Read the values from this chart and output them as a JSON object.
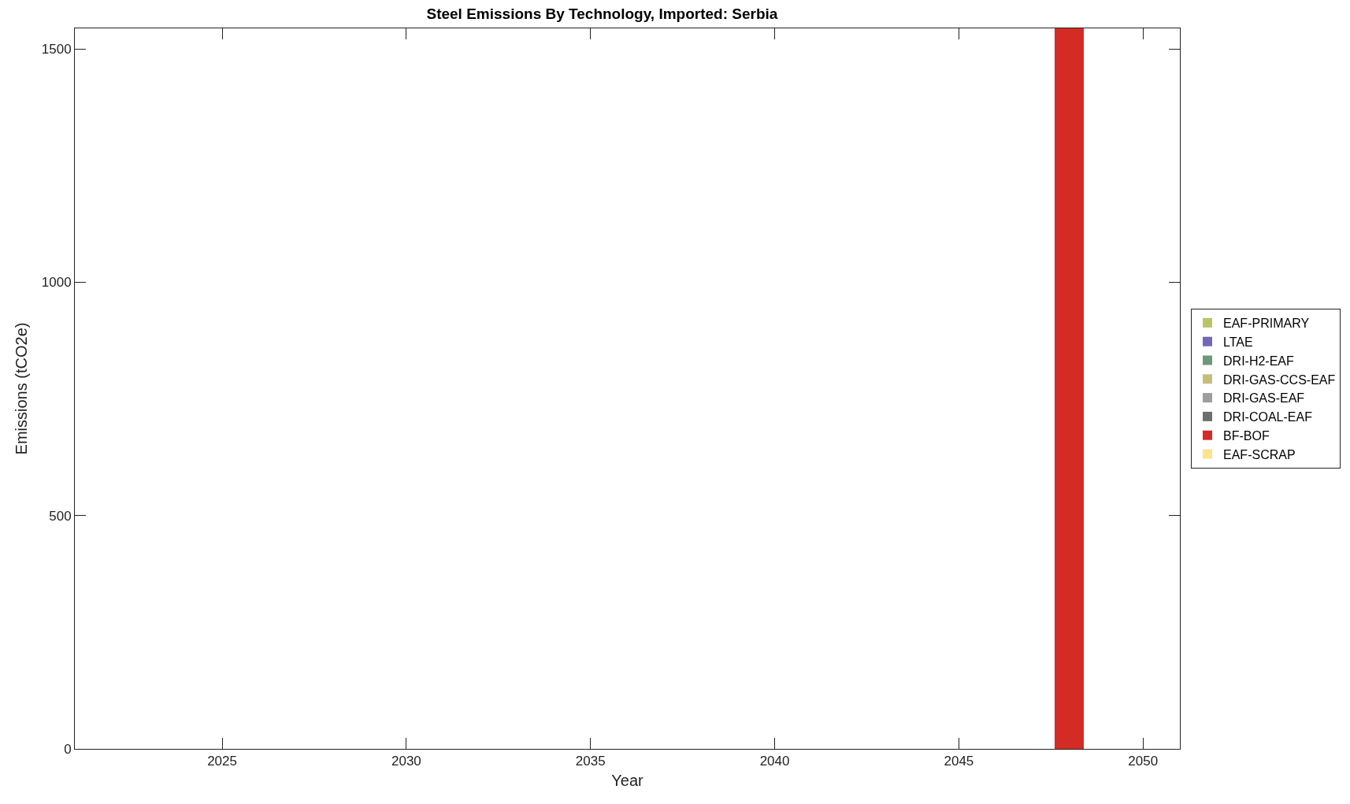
{
  "chart_data": {
    "type": "bar",
    "stacked": true,
    "title": "Steel Emissions By Technology, Imported: Serbia",
    "xlabel": "Year",
    "ylabel": "Emissions (tCO2e)",
    "x": [
      2022,
      2023,
      2024,
      2025,
      2026,
      2027,
      2028,
      2029,
      2030,
      2031,
      2032,
      2033,
      2034,
      2035,
      2036,
      2037,
      2038,
      2039,
      2040,
      2041,
      2042,
      2043,
      2044,
      2045,
      2046,
      2047,
      2048,
      2049,
      2050
    ],
    "series": [
      {
        "name": "EAF-PRIMARY",
        "color": "#bcc366",
        "values": [
          0,
          0,
          0,
          0,
          0,
          0,
          0,
          0,
          0,
          0,
          0,
          0,
          0,
          0,
          0,
          0,
          0,
          0,
          0,
          0,
          0,
          0,
          0,
          0,
          0,
          0,
          0,
          0,
          0
        ]
      },
      {
        "name": "LTAE",
        "color": "#7368b8",
        "values": [
          0,
          0,
          0,
          0,
          0,
          0,
          0,
          0,
          0,
          0,
          0,
          0,
          0,
          0,
          0,
          0,
          0,
          0,
          0,
          0,
          0,
          0,
          0,
          0,
          0,
          0,
          0,
          0,
          0
        ]
      },
      {
        "name": "DRI-H2-EAF",
        "color": "#6f977a",
        "values": [
          0,
          0,
          0,
          0,
          0,
          0,
          0,
          0,
          0,
          0,
          0,
          0,
          0,
          0,
          0,
          0,
          0,
          0,
          0,
          0,
          0,
          0,
          0,
          0,
          0,
          0,
          0,
          0,
          0
        ]
      },
      {
        "name": "DRI-GAS-CCS-EAF",
        "color": "#c5bd7c",
        "values": [
          0,
          0,
          0,
          0,
          0,
          0,
          0,
          0,
          0,
          0,
          0,
          0,
          0,
          0,
          0,
          0,
          0,
          0,
          0,
          0,
          0,
          0,
          0,
          0,
          0,
          0,
          0,
          0,
          0
        ]
      },
      {
        "name": "DRI-GAS-EAF",
        "color": "#9d9d9d",
        "values": [
          0,
          0,
          0,
          0,
          0,
          0,
          0,
          0,
          0,
          0,
          0,
          0,
          0,
          0,
          0,
          0,
          0,
          0,
          0,
          0,
          0,
          0,
          0,
          0,
          0,
          0,
          0,
          0,
          0
        ]
      },
      {
        "name": "DRI-COAL-EAF",
        "color": "#6e6e6e",
        "values": [
          0,
          0,
          0,
          0,
          0,
          0,
          0,
          0,
          0,
          0,
          0,
          0,
          0,
          0,
          0,
          0,
          0,
          0,
          0,
          0,
          0,
          0,
          0,
          0,
          0,
          0,
          0,
          0,
          0
        ]
      },
      {
        "name": "BF-BOF",
        "color": "#d42c24",
        "values": [
          0,
          0,
          0,
          0,
          0,
          0,
          0,
          0,
          0,
          0,
          0,
          0,
          0,
          0,
          0,
          0,
          0,
          0,
          0,
          0,
          0,
          0,
          0,
          0,
          0,
          0,
          1544,
          0,
          0
        ]
      },
      {
        "name": "EAF-SCRAP",
        "color": "#fee28e",
        "values": [
          0,
          0,
          0,
          0,
          0,
          0,
          0,
          0,
          0,
          0,
          0,
          0,
          0,
          0,
          0,
          0,
          0,
          0,
          0,
          0,
          0,
          0,
          0,
          0,
          0,
          0,
          0,
          0,
          0
        ]
      }
    ],
    "xlim": [
      2021,
      2051
    ],
    "xticks": [
      2025,
      2030,
      2035,
      2040,
      2045,
      2050
    ],
    "ylim": [
      0,
      1544
    ],
    "yticks": [
      0,
      500,
      1000,
      1500
    ],
    "grid": false,
    "legend": "right"
  }
}
